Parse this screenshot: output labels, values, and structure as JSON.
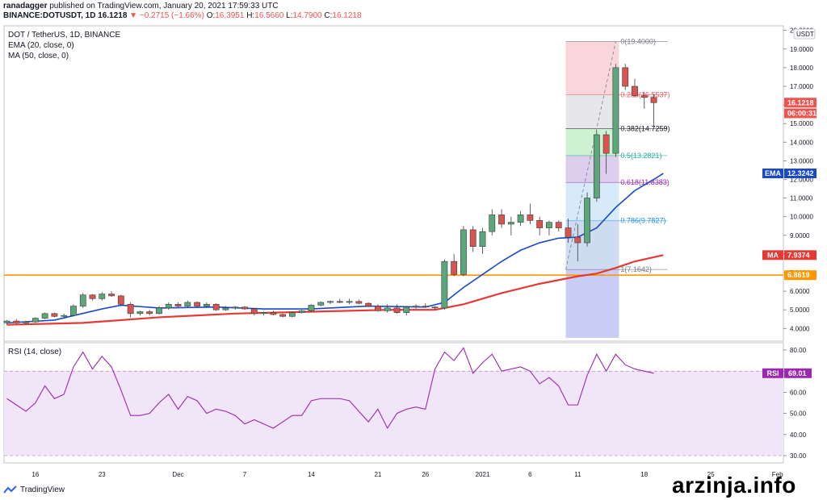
{
  "header": {
    "author": "ranadagger",
    "published_text": "published on TradingView.com, January 20, 2021 17:59:33 UTC",
    "symbol": "BINANCE:DOTUSDT, 1D",
    "last": "16.1218",
    "change": "▼ −0.2715 (−1.66%)",
    "o_label": "O:",
    "o": "16.3951",
    "h_label": "H:",
    "h": "16.5660",
    "l_label": "L:",
    "l": "14.7900",
    "c_label": "C:",
    "c": "16.1218"
  },
  "legend": {
    "pair": "DOT / TetherUS, 1D, BINANCE",
    "ema": "EMA (20, close, 0)",
    "ma": "MA (50, close, 0)",
    "rsi": "RSI (14, close)"
  },
  "footer": {
    "brand": "TradingView",
    "watermark": "arzinja.info",
    "logo_icon": "tradingview-logo-icon"
  },
  "chart_data": [
    {
      "type": "candlestick",
      "currency_label": "USDT",
      "price_axis": [
        4,
        5,
        6,
        7,
        8,
        9,
        10,
        11,
        12,
        13,
        14,
        15,
        16,
        17,
        18,
        19,
        20
      ],
      "price_axis_labels": [
        "4.0000",
        "5.0000",
        "6.0000",
        "7.0000",
        "8.0000",
        "9.0000",
        "10.0000",
        "11.0000",
        "12.0000",
        "13.0000",
        "14.0000",
        "15.0000",
        "16.0000",
        "17.0000",
        "18.0000",
        "19.0000",
        "20.0000"
      ],
      "x_labels": [
        {
          "label": "16",
          "idx": 3
        },
        {
          "label": "23",
          "idx": 10
        },
        {
          "label": "Dec",
          "idx": 18
        },
        {
          "label": "7",
          "idx": 25
        },
        {
          "label": "14",
          "idx": 32
        },
        {
          "label": "21",
          "idx": 39
        },
        {
          "label": "26",
          "idx": 44
        },
        {
          "label": "2021",
          "idx": 50
        },
        {
          "label": "6",
          "idx": 55
        },
        {
          "label": "11",
          "idx": 60
        },
        {
          "label": "18",
          "idx": 67
        },
        {
          "label": "25",
          "idx": 74
        },
        {
          "label": "Feb",
          "idx": 81
        }
      ],
      "candles": [
        [
          4.3,
          4.45,
          4.2,
          4.4
        ],
        [
          4.4,
          4.5,
          4.25,
          4.3
        ],
        [
          4.3,
          4.42,
          4.2,
          4.35
        ],
        [
          4.35,
          4.6,
          4.3,
          4.55
        ],
        [
          4.55,
          4.85,
          4.5,
          4.8
        ],
        [
          4.8,
          4.85,
          4.6,
          4.65
        ],
        [
          4.65,
          4.8,
          4.55,
          4.7
        ],
        [
          4.7,
          5.3,
          4.65,
          5.2
        ],
        [
          5.2,
          5.9,
          5.1,
          5.8
        ],
        [
          5.8,
          5.85,
          5.5,
          5.6
        ],
        [
          5.6,
          5.95,
          5.5,
          5.85
        ],
        [
          5.85,
          6.0,
          5.7,
          5.75
        ],
        [
          5.75,
          5.8,
          5.2,
          5.3
        ],
        [
          5.3,
          5.4,
          4.6,
          4.8
        ],
        [
          4.8,
          4.95,
          4.7,
          4.9
        ],
        [
          4.9,
          5.0,
          4.7,
          4.8
        ],
        [
          4.8,
          5.2,
          4.75,
          5.1
        ],
        [
          5.1,
          5.4,
          5.0,
          5.3
        ],
        [
          5.3,
          5.4,
          5.1,
          5.2
        ],
        [
          5.2,
          5.5,
          5.1,
          5.4
        ],
        [
          5.4,
          5.45,
          5.1,
          5.2
        ],
        [
          5.2,
          5.4,
          5.1,
          5.3
        ],
        [
          5.3,
          5.35,
          4.95,
          5.0
        ],
        [
          5.0,
          5.2,
          4.95,
          5.1
        ],
        [
          5.1,
          5.2,
          5.0,
          5.15
        ],
        [
          5.15,
          5.2,
          5.0,
          5.05
        ],
        [
          5.05,
          5.1,
          4.7,
          4.8
        ],
        [
          4.8,
          4.9,
          4.7,
          4.85
        ],
        [
          4.85,
          4.95,
          4.7,
          4.75
        ],
        [
          4.75,
          4.8,
          4.6,
          4.65
        ],
        [
          4.65,
          4.9,
          4.6,
          4.85
        ],
        [
          4.85,
          5.0,
          4.8,
          4.95
        ],
        [
          4.95,
          5.3,
          4.9,
          5.25
        ],
        [
          5.25,
          5.45,
          5.2,
          5.4
        ],
        [
          5.4,
          5.5,
          5.3,
          5.45
        ],
        [
          5.45,
          5.6,
          5.35,
          5.4
        ],
        [
          5.4,
          5.6,
          5.3,
          5.45
        ],
        [
          5.45,
          5.55,
          5.3,
          5.35
        ],
        [
          5.35,
          5.4,
          5.15,
          5.2
        ],
        [
          5.2,
          5.3,
          4.9,
          4.95
        ],
        [
          4.95,
          5.3,
          4.85,
          5.1
        ],
        [
          5.1,
          5.3,
          4.8,
          4.85
        ],
        [
          4.85,
          5.2,
          4.7,
          5.15
        ],
        [
          5.15,
          5.3,
          5.05,
          5.2
        ],
        [
          5.2,
          5.35,
          5.1,
          5.15
        ],
        [
          5.15,
          5.2,
          5.0,
          5.1
        ],
        [
          5.1,
          7.7,
          5.0,
          7.6
        ],
        [
          7.6,
          8.0,
          6.8,
          6.9
        ],
        [
          6.9,
          9.5,
          6.8,
          9.3
        ],
        [
          9.3,
          9.5,
          8.1,
          8.4
        ],
        [
          8.4,
          9.4,
          8.0,
          9.2
        ],
        [
          9.2,
          10.4,
          9.0,
          10.1
        ],
        [
          10.1,
          10.4,
          9.4,
          9.6
        ],
        [
          9.6,
          10.0,
          9.0,
          9.7
        ],
        [
          9.7,
          10.3,
          9.5,
          10.1
        ],
        [
          10.1,
          10.7,
          9.6,
          9.8
        ],
        [
          9.8,
          10.0,
          9.0,
          9.4
        ],
        [
          9.4,
          9.8,
          9.0,
          9.7
        ],
        [
          9.7,
          9.8,
          9.2,
          9.4
        ],
        [
          9.4,
          9.9,
          8.6,
          8.9
        ],
        [
          8.9,
          9.6,
          7.6,
          8.6
        ],
        [
          8.6,
          11.3,
          8.4,
          11.0
        ],
        [
          11.0,
          14.6,
          10.8,
          14.4
        ],
        [
          14.4,
          14.6,
          12.3,
          13.4
        ],
        [
          13.4,
          18.2,
          13.2,
          18.0
        ],
        [
          18.0,
          18.2,
          16.8,
          17.0
        ],
        [
          17.0,
          17.4,
          16.4,
          16.5
        ],
        [
          16.5,
          16.7,
          15.8,
          16.4
        ],
        [
          16.4,
          16.6,
          14.79,
          16.12
        ]
      ],
      "ema": [
        [
          0,
          4.3
        ],
        [
          5,
          4.45
        ],
        [
          10,
          5.05
        ],
        [
          12,
          5.25
        ],
        [
          16,
          5.1
        ],
        [
          22,
          5.15
        ],
        [
          27,
          5.05
        ],
        [
          32,
          5.05
        ],
        [
          38,
          5.2
        ],
        [
          44,
          5.15
        ],
        [
          46,
          5.4
        ],
        [
          48,
          6.2
        ],
        [
          50,
          6.9
        ],
        [
          52,
          7.6
        ],
        [
          54,
          8.2
        ],
        [
          56,
          8.6
        ],
        [
          58,
          8.85
        ],
        [
          60,
          8.9
        ],
        [
          62,
          9.4
        ],
        [
          64,
          10.5
        ],
        [
          66,
          11.4
        ],
        [
          68,
          12.0
        ],
        [
          69,
          12.32
        ]
      ],
      "ma": [
        [
          0,
          4.2
        ],
        [
          8,
          4.3
        ],
        [
          16,
          4.6
        ],
        [
          24,
          4.8
        ],
        [
          32,
          4.9
        ],
        [
          40,
          5.0
        ],
        [
          45,
          5.0
        ],
        [
          48,
          5.3
        ],
        [
          52,
          5.9
        ],
        [
          56,
          6.4
        ],
        [
          60,
          6.8
        ],
        [
          62,
          6.95
        ],
        [
          64,
          7.25
        ],
        [
          66,
          7.6
        ],
        [
          69,
          7.94
        ]
      ],
      "support": {
        "value": 6.8619,
        "label": "6.8619"
      },
      "fib": {
        "levels": [
          {
            "ratio": "0",
            "value": 19.4,
            "text": "0(19.4000)",
            "color": "#787b86"
          },
          {
            "ratio": "0.236",
            "value": 16.55,
            "text": "0.236(16.5537)",
            "color": "#f7525f"
          },
          {
            "ratio": "0.382",
            "value": 14.7259,
            "text": "0.382(14.7259)",
            "color": "#131722"
          },
          {
            "ratio": "0.5",
            "value": 13.2821,
            "text": "0.5(13.2821)",
            "color": "#22ab94"
          },
          {
            "ratio": "0.618",
            "value": 11.8383,
            "text": "0.618(11.8383)",
            "color": "#9c27b0"
          },
          {
            "ratio": "0.786",
            "value": 9.7827,
            "text": "0.786(9.7827)",
            "color": "#2196f3"
          },
          {
            "ratio": "1",
            "value": 7.1642,
            "text": "1(7.1642)",
            "color": "#787b86"
          }
        ],
        "fills": [
          "#f7cfd2",
          "#e3e3e6",
          "#c6efc9",
          "#d7c6ea",
          "#cfe6f8",
          "#c6d6ef",
          "#bfc3f2"
        ],
        "start_idx": 59,
        "end_idx": 64,
        "box_bottom": 3.5
      },
      "tags": [
        {
          "label": "16.1218",
          "value": 16.1218,
          "color": "#ef5350"
        },
        {
          "label": "06:00:31",
          "value": 15.55,
          "color": "#ef5350"
        },
        {
          "label": "EMA",
          "sub": "12.3242",
          "value": 12.3242,
          "color": "#1848cc"
        },
        {
          "label": "MA",
          "sub": "7.9374",
          "value": 7.9374,
          "color": "#e53935"
        },
        {
          "label": "6.8619",
          "value": 6.8619,
          "color": "#ff9800"
        }
      ]
    },
    {
      "type": "line",
      "name": "RSI",
      "ylim": [
        26,
        82
      ],
      "axis": [
        30,
        40,
        50,
        60,
        70,
        80
      ],
      "axis_labels": [
        "30.00",
        "40.00",
        "50.00",
        "60.00",
        "70.00",
        "80.00"
      ],
      "band": [
        30,
        70
      ],
      "values": [
        57,
        54,
        51,
        55,
        63,
        57,
        59,
        72,
        79,
        71,
        77,
        72,
        61,
        49,
        49,
        50,
        55,
        59,
        52,
        58,
        56,
        50,
        52,
        51,
        49,
        45,
        47,
        45,
        43,
        46,
        49,
        49,
        56,
        57,
        57,
        57,
        56,
        51,
        46,
        52,
        43,
        50,
        52,
        53,
        52,
        71,
        79,
        75,
        81,
        69,
        74,
        78,
        70,
        71,
        72,
        70,
        64,
        67,
        63,
        54,
        54,
        68,
        78,
        70,
        78,
        73,
        71,
        70,
        69
      ],
      "last": {
        "label": "RSI",
        "value": "69.01",
        "color": "#9c27b0"
      }
    }
  ]
}
